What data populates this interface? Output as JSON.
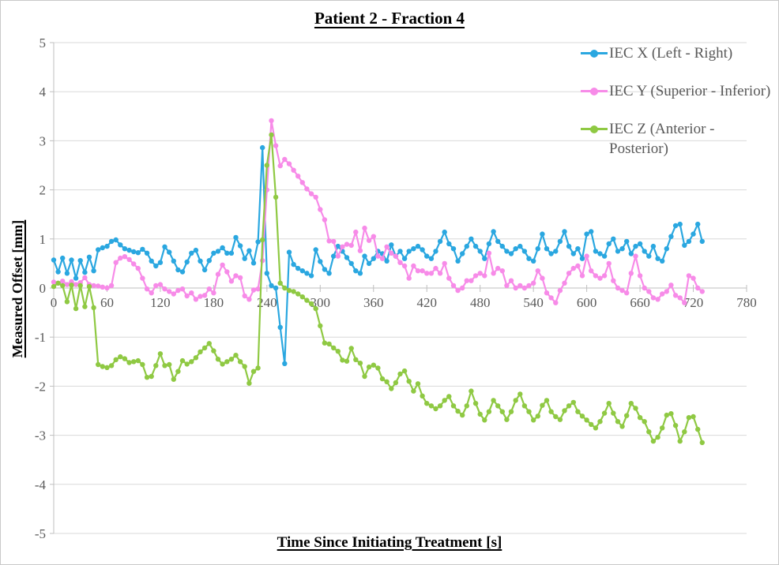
{
  "title": "Patient 2 - Fraction 4",
  "colors": {
    "iec_x": "#2aa7e0",
    "iec_y": "#f78be8",
    "iec_z": "#8fc943",
    "gridline": "#d9d9d9",
    "axis_line": "#bfbfbf",
    "tick_text": "#595959",
    "legend_text": "#595959",
    "title_text": "#000000"
  },
  "legend": {
    "position": "top-right",
    "items": [
      {
        "label": "IEC X (Left - Right)",
        "series": "iec_x"
      },
      {
        "label": "IEC Y (Superior - Inferior)",
        "series": "iec_y"
      },
      {
        "label": "IEC Z (Anterior - Posterior)",
        "series": "iec_z"
      }
    ]
  },
  "chart_data": {
    "type": "line",
    "title": "Patient 2 - Fraction 4",
    "xlabel": "Time Since Initiating Treatment [s]",
    "ylabel": "Measured Offset [mm]",
    "xlim": [
      0,
      780
    ],
    "ylim": [
      -5,
      5
    ],
    "x_ticks": [
      0,
      60,
      120,
      180,
      240,
      300,
      360,
      420,
      480,
      540,
      600,
      660,
      720,
      780
    ],
    "y_ticks": [
      -5,
      -4,
      -3,
      -2,
      -1,
      0,
      1,
      2,
      3,
      4,
      5
    ],
    "grid": "horizontal",
    "markers": "circle",
    "x_start": 0,
    "x_step": 5,
    "series": [
      {
        "name": "IEC X (Left - Right)",
        "color_key": "iec_x",
        "values": [
          0.57,
          0.33,
          0.61,
          0.3,
          0.57,
          0.2,
          0.56,
          0.32,
          0.63,
          0.35,
          0.78,
          0.82,
          0.85,
          0.95,
          0.98,
          0.88,
          0.8,
          0.77,
          0.74,
          0.72,
          0.79,
          0.71,
          0.55,
          0.45,
          0.52,
          0.84,
          0.73,
          0.55,
          0.37,
          0.33,
          0.53,
          0.71,
          0.77,
          0.55,
          0.37,
          0.56,
          0.71,
          0.75,
          0.82,
          0.71,
          0.71,
          1.03,
          0.86,
          0.6,
          0.76,
          0.51,
          0.94,
          2.86,
          0.3,
          0.05,
          0.0,
          -0.8,
          -1.54,
          0.73,
          0.48,
          0.4,
          0.35,
          0.3,
          0.25,
          0.78,
          0.54,
          0.38,
          0.3,
          0.65,
          0.85,
          0.75,
          0.62,
          0.5,
          0.35,
          0.3,
          0.65,
          0.5,
          0.6,
          0.75,
          0.7,
          0.55,
          0.88,
          0.65,
          0.75,
          0.6,
          0.75,
          0.8,
          0.85,
          0.78,
          0.65,
          0.6,
          0.75,
          0.95,
          1.14,
          0.9,
          0.8,
          0.55,
          0.7,
          0.85,
          1.0,
          0.85,
          0.75,
          0.6,
          0.9,
          1.15,
          0.95,
          0.85,
          0.75,
          0.7,
          0.8,
          0.85,
          0.75,
          0.6,
          0.55,
          0.8,
          1.1,
          0.8,
          0.7,
          0.75,
          0.95,
          1.15,
          0.85,
          0.7,
          0.8,
          0.6,
          1.1,
          1.15,
          0.75,
          0.7,
          0.65,
          0.9,
          1.0,
          0.75,
          0.8,
          0.95,
          0.7,
          0.85,
          0.9,
          0.75,
          0.65,
          0.85,
          0.6,
          0.55,
          0.8,
          1.05,
          1.27,
          1.3,
          0.87,
          0.95,
          1.1,
          1.3,
          0.95
        ]
      },
      {
        "name": "IEC Y (Superior - Inferior)",
        "color_key": "iec_y",
        "values": [
          0.12,
          0.1,
          0.14,
          0.07,
          0.13,
          0.07,
          0.11,
          0.21,
          0.07,
          0.05,
          0.04,
          0.02,
          0.0,
          0.05,
          0.52,
          0.61,
          0.64,
          0.58,
          0.49,
          0.4,
          0.2,
          -0.02,
          -0.1,
          0.05,
          0.07,
          -0.02,
          -0.07,
          -0.12,
          -0.05,
          -0.02,
          -0.16,
          -0.1,
          -0.23,
          -0.17,
          -0.15,
          -0.02,
          -0.1,
          0.28,
          0.47,
          0.33,
          0.14,
          0.25,
          0.21,
          -0.16,
          -0.23,
          -0.04,
          -0.02,
          0.56,
          2.0,
          3.41,
          2.9,
          2.49,
          2.62,
          2.53,
          2.4,
          2.28,
          2.15,
          2.02,
          1.92,
          1.85,
          1.6,
          1.39,
          0.96,
          0.95,
          0.65,
          0.84,
          0.89,
          0.87,
          1.14,
          0.76,
          1.22,
          0.97,
          1.05,
          0.65,
          0.6,
          0.84,
          0.71,
          0.65,
          0.52,
          0.45,
          0.2,
          0.45,
          0.35,
          0.35,
          0.3,
          0.3,
          0.4,
          0.3,
          0.5,
          0.2,
          0.05,
          -0.05,
          0.0,
          0.15,
          0.15,
          0.25,
          0.3,
          0.25,
          0.71,
          0.3,
          0.4,
          0.35,
          0.05,
          0.15,
          0.0,
          0.05,
          0.0,
          0.05,
          0.1,
          0.35,
          0.2,
          -0.1,
          -0.2,
          -0.3,
          -0.05,
          0.1,
          0.3,
          0.4,
          0.45,
          0.25,
          0.65,
          0.35,
          0.25,
          0.2,
          0.25,
          0.5,
          0.15,
          0.0,
          -0.05,
          -0.1,
          0.3,
          0.65,
          0.25,
          0.0,
          -0.07,
          -0.2,
          -0.23,
          -0.12,
          -0.07,
          0.06,
          -0.15,
          -0.2,
          -0.3,
          0.25,
          0.2,
          0.0,
          -0.07
        ]
      },
      {
        "name": "IEC Z (Anterior - Posterior)",
        "color_key": "iec_z",
        "values": [
          0.03,
          0.1,
          0.05,
          -0.28,
          0.06,
          -0.42,
          0.05,
          -0.38,
          0.03,
          -0.4,
          -1.56,
          -1.6,
          -1.62,
          -1.58,
          -1.46,
          -1.4,
          -1.44,
          -1.52,
          -1.5,
          -1.48,
          -1.56,
          -1.82,
          -1.8,
          -1.58,
          -1.34,
          -1.58,
          -1.56,
          -1.86,
          -1.7,
          -1.48,
          -1.55,
          -1.5,
          -1.42,
          -1.3,
          -1.22,
          -1.13,
          -1.28,
          -1.45,
          -1.55,
          -1.5,
          -1.45,
          -1.37,
          -1.5,
          -1.6,
          -1.94,
          -1.7,
          -1.63,
          0.98,
          2.5,
          3.12,
          1.85,
          0.1,
          0.0,
          -0.05,
          -0.07,
          -0.12,
          -0.18,
          -0.25,
          -0.32,
          -0.42,
          -0.77,
          -1.12,
          -1.14,
          -1.22,
          -1.29,
          -1.47,
          -1.49,
          -1.23,
          -1.46,
          -1.53,
          -1.8,
          -1.61,
          -1.57,
          -1.63,
          -1.85,
          -1.91,
          -2.05,
          -1.93,
          -1.75,
          -1.69,
          -1.9,
          -2.1,
          -1.95,
          -2.2,
          -2.35,
          -2.4,
          -2.46,
          -2.4,
          -2.29,
          -2.21,
          -2.4,
          -2.51,
          -2.59,
          -2.4,
          -2.1,
          -2.35,
          -2.57,
          -2.69,
          -2.52,
          -2.29,
          -2.4,
          -2.52,
          -2.68,
          -2.52,
          -2.29,
          -2.16,
          -2.4,
          -2.52,
          -2.69,
          -2.61,
          -2.39,
          -2.29,
          -2.52,
          -2.62,
          -2.68,
          -2.5,
          -2.4,
          -2.33,
          -2.52,
          -2.61,
          -2.69,
          -2.78,
          -2.85,
          -2.72,
          -2.55,
          -2.35,
          -2.55,
          -2.72,
          -2.82,
          -2.6,
          -2.35,
          -2.45,
          -2.64,
          -2.72,
          -2.93,
          -3.12,
          -3.04,
          -2.85,
          -2.59,
          -2.56,
          -2.8,
          -3.12,
          -2.93,
          -2.64,
          -2.62,
          -2.88,
          -3.15
        ]
      }
    ]
  },
  "plot_geometry_note": "y horizontal gridlines at every 1 mm; x ticks on zero line every 60 s"
}
